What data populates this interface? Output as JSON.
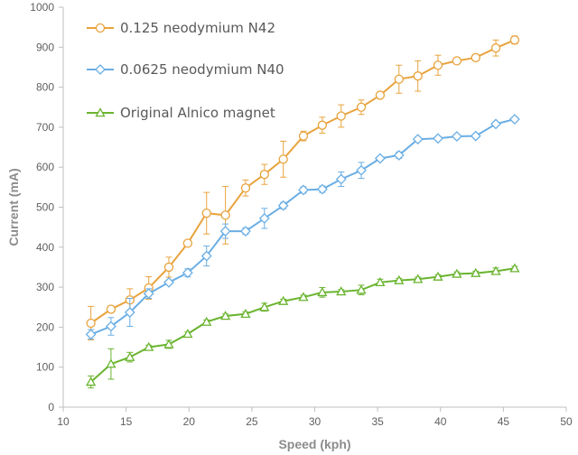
{
  "chart_data": {
    "type": "line",
    "title": "",
    "xlabel": "Speed (kph)",
    "ylabel": "Current (mA)",
    "xlim": [
      10,
      50
    ],
    "ylim": [
      0,
      1000
    ],
    "x_ticks": [
      "10",
      "15",
      "20",
      "25",
      "30",
      "35",
      "40",
      "45",
      "50"
    ],
    "y_ticks": [
      "0",
      "100",
      "200",
      "300",
      "400",
      "500",
      "600",
      "700",
      "800",
      "900",
      "1000"
    ],
    "grid": false,
    "legend_position": "top-left",
    "series": [
      {
        "name": "0.125 neodymium N42",
        "color": "#e8a33d",
        "marker": "circle",
        "points": [
          {
            "x": 12.2,
            "y": 210,
            "err": 42
          },
          {
            "x": 13.8,
            "y": 245,
            "err": 8
          },
          {
            "x": 15.3,
            "y": 268,
            "err": 28
          },
          {
            "x": 16.8,
            "y": 298,
            "err": 28
          },
          {
            "x": 18.4,
            "y": 350,
            "err": 25
          },
          {
            "x": 19.9,
            "y": 410,
            "err": 5
          },
          {
            "x": 21.4,
            "y": 485,
            "err": 52
          },
          {
            "x": 22.9,
            "y": 480,
            "err": 72
          },
          {
            "x": 24.5,
            "y": 548,
            "err": 20
          },
          {
            "x": 26.0,
            "y": 582,
            "err": 25
          },
          {
            "x": 27.5,
            "y": 620,
            "err": 45
          },
          {
            "x": 29.1,
            "y": 678,
            "err": 12
          },
          {
            "x": 30.6,
            "y": 705,
            "err": 20
          },
          {
            "x": 32.1,
            "y": 728,
            "err": 28
          },
          {
            "x": 33.7,
            "y": 750,
            "err": 18
          },
          {
            "x": 35.2,
            "y": 780,
            "err": 5
          },
          {
            "x": 36.7,
            "y": 820,
            "err": 35
          },
          {
            "x": 38.2,
            "y": 828,
            "err": 38
          },
          {
            "x": 39.8,
            "y": 855,
            "err": 25
          },
          {
            "x": 41.3,
            "y": 866,
            "err": 8
          },
          {
            "x": 42.8,
            "y": 874,
            "err": 8
          },
          {
            "x": 44.4,
            "y": 898,
            "err": 20
          },
          {
            "x": 45.9,
            "y": 918,
            "err": 10
          }
        ]
      },
      {
        "name": "0.0625 neodymium N40",
        "color": "#6aaee4",
        "marker": "diamond",
        "points": [
          {
            "x": 12.2,
            "y": 182,
            "err": 12
          },
          {
            "x": 13.8,
            "y": 202,
            "err": 22
          },
          {
            "x": 15.3,
            "y": 237,
            "err": 35
          },
          {
            "x": 16.8,
            "y": 284,
            "err": 12
          },
          {
            "x": 18.4,
            "y": 312,
            "err": 5
          },
          {
            "x": 19.9,
            "y": 336,
            "err": 10
          },
          {
            "x": 21.4,
            "y": 378,
            "err": 25
          },
          {
            "x": 22.9,
            "y": 440,
            "err": 18
          },
          {
            "x": 24.5,
            "y": 440,
            "err": 8
          },
          {
            "x": 26.0,
            "y": 472,
            "err": 25
          },
          {
            "x": 27.5,
            "y": 504,
            "err": 8
          },
          {
            "x": 29.1,
            "y": 543,
            "err": 8
          },
          {
            "x": 30.6,
            "y": 545,
            "err": 8
          },
          {
            "x": 32.1,
            "y": 570,
            "err": 18
          },
          {
            "x": 33.7,
            "y": 592,
            "err": 20
          },
          {
            "x": 35.2,
            "y": 622,
            "err": 5
          },
          {
            "x": 36.7,
            "y": 630,
            "err": 8
          },
          {
            "x": 38.2,
            "y": 670,
            "err": 5
          },
          {
            "x": 39.8,
            "y": 672,
            "err": 5
          },
          {
            "x": 41.3,
            "y": 677,
            "err": 5
          },
          {
            "x": 42.8,
            "y": 678,
            "err": 5
          },
          {
            "x": 44.4,
            "y": 708,
            "err": 5
          },
          {
            "x": 45.9,
            "y": 720,
            "err": 5
          }
        ]
      },
      {
        "name": "Original Alnico magnet",
        "color": "#6ab42f",
        "marker": "triangle",
        "points": [
          {
            "x": 12.2,
            "y": 63,
            "err": 15
          },
          {
            "x": 13.8,
            "y": 108,
            "err": 38
          },
          {
            "x": 15.3,
            "y": 125,
            "err": 12
          },
          {
            "x": 16.8,
            "y": 150,
            "err": 5
          },
          {
            "x": 18.4,
            "y": 157,
            "err": 10
          },
          {
            "x": 19.9,
            "y": 183,
            "err": 5
          },
          {
            "x": 21.4,
            "y": 213,
            "err": 5
          },
          {
            "x": 22.9,
            "y": 228,
            "err": 5
          },
          {
            "x": 24.5,
            "y": 233,
            "err": 5
          },
          {
            "x": 26.0,
            "y": 250,
            "err": 10
          },
          {
            "x": 27.5,
            "y": 265,
            "err": 5
          },
          {
            "x": 29.1,
            "y": 275,
            "err": 5
          },
          {
            "x": 30.6,
            "y": 287,
            "err": 12
          },
          {
            "x": 32.1,
            "y": 289,
            "err": 5
          },
          {
            "x": 33.7,
            "y": 293,
            "err": 12
          },
          {
            "x": 35.2,
            "y": 312,
            "err": 8
          },
          {
            "x": 36.7,
            "y": 317,
            "err": 5
          },
          {
            "x": 38.2,
            "y": 320,
            "err": 5
          },
          {
            "x": 39.8,
            "y": 326,
            "err": 5
          },
          {
            "x": 41.3,
            "y": 333,
            "err": 5
          },
          {
            "x": 42.8,
            "y": 335,
            "err": 5
          },
          {
            "x": 44.4,
            "y": 340,
            "err": 8
          },
          {
            "x": 45.9,
            "y": 347,
            "err": 5
          }
        ]
      }
    ]
  }
}
